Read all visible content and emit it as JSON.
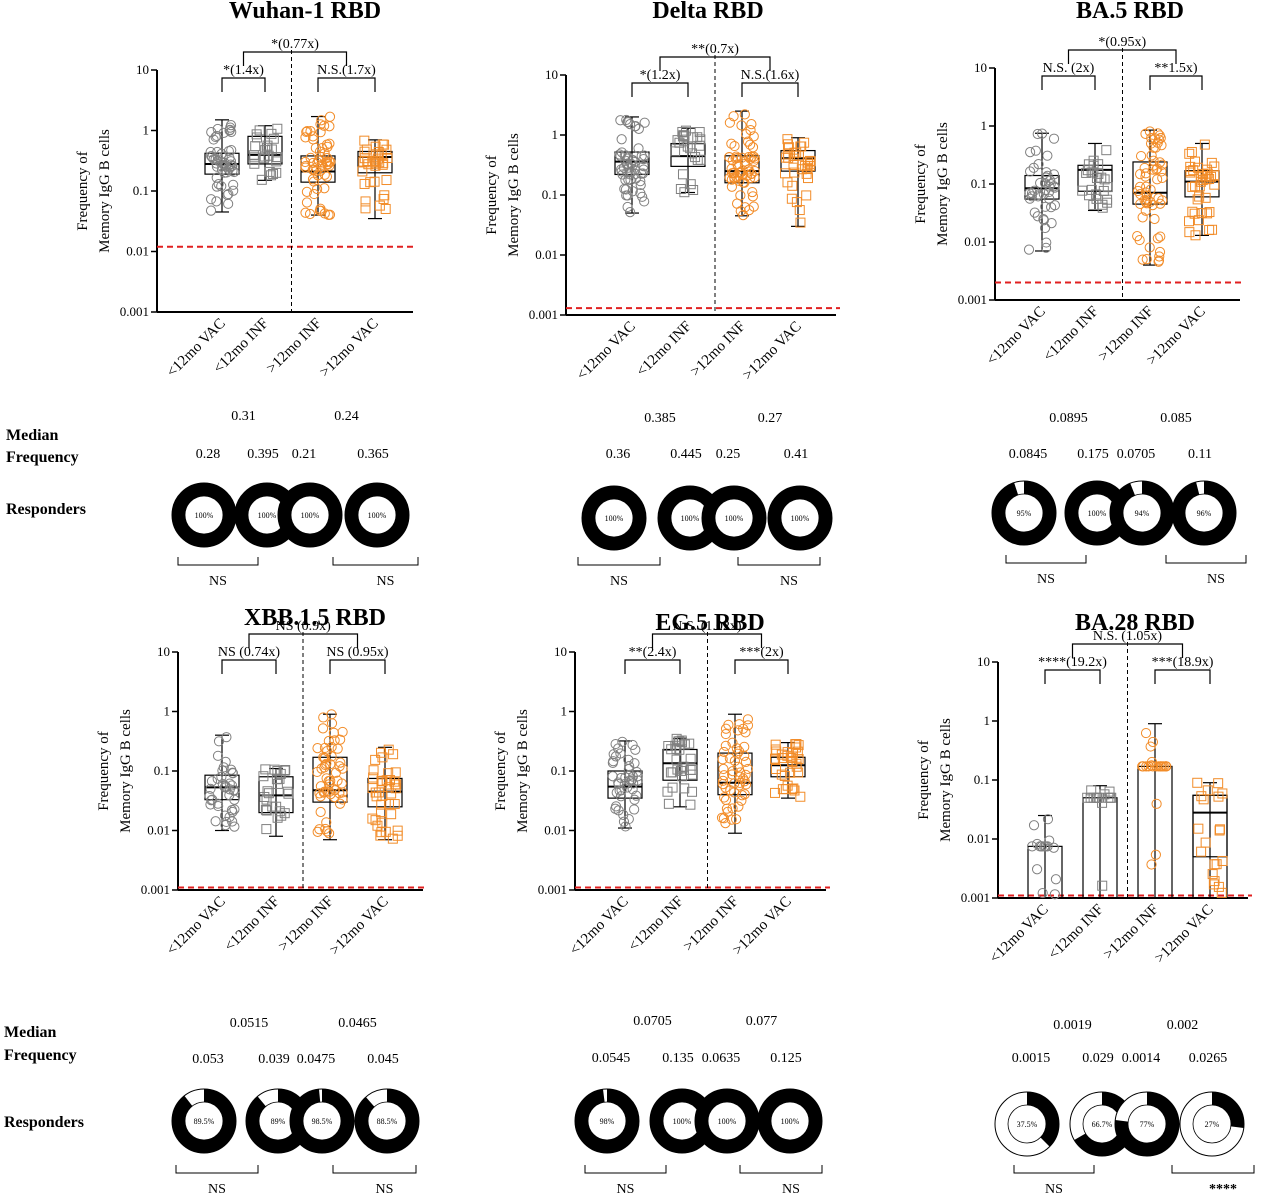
{
  "colors": {
    "vac_inf_early": "#808080",
    "late_groups": "#F28C28",
    "limit_line": "#E02020",
    "donut_fill": "#000000"
  },
  "row_labels": {
    "median": [
      "Median",
      "Frequency"
    ],
    "responders": "Responders"
  },
  "chart_data": [
    {
      "type": "box",
      "title": "Wuhan-1 RBD",
      "ylabel": [
        "Frequency of",
        "Memory IgG B cells"
      ],
      "yscale": "log",
      "ylim": [
        0.001,
        10
      ],
      "ytick_labels": [
        "0.001",
        "0.01",
        "0.1",
        "1",
        "10"
      ],
      "categories": [
        "<12mo VAC",
        "<12mo INF",
        ">12mo INF",
        ">12mo VAC"
      ],
      "limit_of_detection": 0.012,
      "comparisons": [
        {
          "label": "*(1.4x)",
          "between": [
            0,
            1
          ]
        },
        {
          "label": "N.S.(1.7x)",
          "between": [
            2,
            3
          ]
        },
        {
          "label": "*(0.77x)",
          "between": [
            0.5,
            2.5
          ]
        }
      ],
      "pair_medians": [
        "0.31",
        "0.24"
      ],
      "group_medians": [
        "0.28",
        "0.395",
        "0.21",
        "0.365"
      ],
      "responders_percent": [
        "100%",
        "100%",
        "100%",
        "100%"
      ],
      "responders_fraction": [
        1.0,
        1.0,
        1.0,
        1.0
      ],
      "responder_tests": [
        "NS",
        "NS"
      ]
    },
    {
      "type": "box",
      "title": "Delta RBD",
      "ylabel": [
        "Frequency of",
        "Memory IgG B cells"
      ],
      "yscale": "log",
      "ylim": [
        0.001,
        10
      ],
      "ytick_labels": [
        "0.001",
        "0.01",
        "0.1",
        "1",
        "10"
      ],
      "categories": [
        "<12mo VAC",
        "<12mo INF",
        ">12mo INF",
        ">12mo VAC"
      ],
      "limit_of_detection": 0.0013,
      "comparisons": [
        {
          "label": "*(1.2x)",
          "between": [
            0,
            1
          ]
        },
        {
          "label": "N.S.(1.6x)",
          "between": [
            2,
            3
          ]
        },
        {
          "label": "**(0.7x)",
          "between": [
            0.5,
            2.5
          ]
        }
      ],
      "pair_medians": [
        "0.385",
        "0.27"
      ],
      "group_medians": [
        "0.36",
        "0.445",
        "0.25",
        "0.41"
      ],
      "responders_percent": [
        "100%",
        "100%",
        "100%",
        "100%"
      ],
      "responders_fraction": [
        1.0,
        1.0,
        1.0,
        1.0
      ],
      "responder_tests": [
        "NS",
        "NS"
      ]
    },
    {
      "type": "box",
      "title": "BA.5 RBD",
      "ylabel": [
        "Frequency of",
        "Memory IgG B cells"
      ],
      "yscale": "log",
      "ylim": [
        0.001,
        10
      ],
      "ytick_labels": [
        "0.001",
        "0.01",
        "0.1",
        "1",
        "10"
      ],
      "categories": [
        "<12mo VAC",
        "<12mo INF",
        ">12mo INF",
        ">12mo VAC"
      ],
      "limit_of_detection": 0.002,
      "comparisons": [
        {
          "label": "N.S. (2x)",
          "between": [
            0,
            1
          ]
        },
        {
          "label": "**1.5x)",
          "between": [
            2,
            3
          ]
        },
        {
          "label": "*(0.95x)",
          "between": [
            0.5,
            2.5
          ]
        }
      ],
      "pair_medians": [
        "0.0895",
        "0.085"
      ],
      "group_medians": [
        "0.0845",
        "0.175",
        "0.0705",
        "0.11"
      ],
      "responders_percent": [
        "95%",
        "100%",
        "94%",
        "96%"
      ],
      "responders_fraction": [
        0.95,
        1.0,
        0.94,
        0.96
      ],
      "responder_tests": [
        "NS",
        "NS"
      ]
    },
    {
      "type": "box",
      "title": "XBB.1.5 RBD",
      "ylabel": [
        "Frequency of",
        "Memory IgG B cells"
      ],
      "yscale": "log",
      "ylim": [
        0.001,
        10
      ],
      "ytick_labels": [
        "0.001",
        "0.01",
        "0.1",
        "1",
        "10"
      ],
      "categories": [
        "<12mo VAC",
        "<12mo INF",
        ">12mo INF",
        ">12mo VAC"
      ],
      "limit_of_detection": 0.0011,
      "comparisons": [
        {
          "label": "NS (0.74x)",
          "between": [
            0,
            1
          ]
        },
        {
          "label": "NS (0.95x)",
          "between": [
            2,
            3
          ]
        },
        {
          "label": "NS (0.9x)",
          "between": [
            0.5,
            2.5
          ]
        }
      ],
      "pair_medians": [
        "0.0515",
        "0.0465"
      ],
      "group_medians": [
        "0.053",
        "0.039",
        "0.0475",
        "0.045"
      ],
      "responders_percent": [
        "89.5%",
        "89%",
        "98.5%",
        "88.5%"
      ],
      "responders_fraction": [
        0.895,
        0.89,
        0.985,
        0.885
      ],
      "responder_tests": [
        "NS",
        "NS"
      ]
    },
    {
      "type": "box",
      "title": "EG.5 RBD",
      "ylabel": [
        "Frequency of",
        "Memory IgG B cells"
      ],
      "yscale": "log",
      "ylim": [
        0.001,
        10
      ],
      "ytick_labels": [
        "0.001",
        "0.01",
        "0.1",
        "1",
        "10"
      ],
      "categories": [
        "<12mo VAC",
        "<12mo INF",
        ">12mo INF",
        ">12mo VAC"
      ],
      "limit_of_detection": 0.0011,
      "comparisons": [
        {
          "label": "**(2.4x)",
          "between": [
            0,
            1
          ]
        },
        {
          "label": "***(2x)",
          "between": [
            2,
            3
          ]
        },
        {
          "label": "N.S. (1.02x)",
          "between": [
            0.5,
            2.5
          ]
        }
      ],
      "pair_medians": [
        "0.0705",
        "0.077"
      ],
      "group_medians": [
        "0.0545",
        "0.135",
        "0.0635",
        "0.125"
      ],
      "responders_percent": [
        "98%",
        "100%",
        "100%",
        "100%"
      ],
      "responders_fraction": [
        0.98,
        1.0,
        1.0,
        1.0
      ],
      "responder_tests": [
        "NS",
        "NS"
      ]
    },
    {
      "type": "bar",
      "title": "BA.28 RBD",
      "ylabel": [
        "Frequency of",
        "Memory IgG B cells"
      ],
      "yscale": "log",
      "ylim": [
        0.001,
        10
      ],
      "ytick_labels": [
        "0.001",
        "0.01",
        "0.1",
        "1",
        "10"
      ],
      "categories": [
        "<12mo VAC",
        "<12mo INF",
        ">12mo INF",
        ">12mo VAC"
      ],
      "limit_of_detection": 0.0011,
      "comparisons": [
        {
          "label": "****(19.2x)",
          "between": [
            0,
            1
          ]
        },
        {
          "label": "***(18.9x)",
          "between": [
            2,
            3
          ]
        },
        {
          "label": "N.S. (1.05x)",
          "between": [
            0.5,
            2.5
          ]
        }
      ],
      "pair_medians": [
        "0.0019",
        "0.002"
      ],
      "group_medians": [
        "0.0015",
        "0.029",
        "0.0014",
        "0.0265"
      ],
      "responders_percent": [
        "37.5%",
        "66.7%",
        "77%",
        "27%"
      ],
      "responders_fraction": [
        0.375,
        0.667,
        0.77,
        0.27
      ],
      "responder_tests": [
        "NS",
        "****"
      ]
    }
  ]
}
